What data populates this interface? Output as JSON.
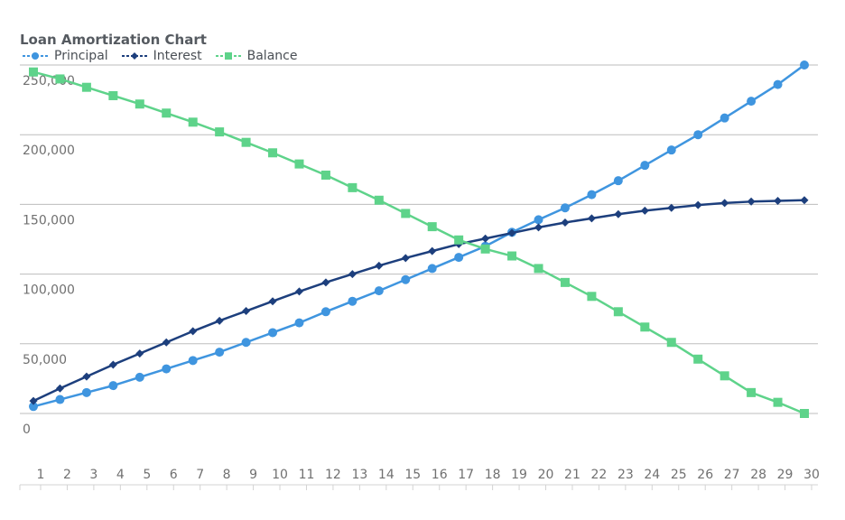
{
  "chart_data": {
    "type": "line",
    "title": "Loan Amortization Chart",
    "xlabel": "",
    "ylabel": "",
    "x": [
      1,
      2,
      3,
      4,
      5,
      6,
      7,
      8,
      9,
      10,
      11,
      12,
      13,
      14,
      15,
      16,
      17,
      18,
      19,
      20,
      21,
      22,
      23,
      24,
      25,
      26,
      27,
      28,
      29,
      30
    ],
    "xlim": [
      1,
      30
    ],
    "ylim": [
      0,
      250000
    ],
    "yticks": [
      0,
      50000,
      100000,
      150000,
      200000,
      250000
    ],
    "ytick_labels": [
      "0",
      "50,000",
      "100,000",
      "150,000",
      "200,000",
      "250,000"
    ],
    "grid": true,
    "legend": "top-left",
    "series": [
      {
        "name": "Principal",
        "color": "#3f95df",
        "marker": "circle",
        "values": [
          5000,
          10000,
          15000,
          20000,
          26000,
          32000,
          38000,
          44000,
          51000,
          58000,
          65000,
          73000,
          80500,
          88000,
          96000,
          104000,
          112000,
          120000,
          130000,
          139000,
          147500,
          157000,
          167000,
          178000,
          189000,
          200000,
          212000,
          224000,
          236000,
          250000
        ]
      },
      {
        "name": "Interest",
        "color": "#1d3f7d",
        "marker": "diamond",
        "values": [
          9000,
          18000,
          26500,
          35000,
          43000,
          51000,
          59000,
          66500,
          73500,
          80500,
          87500,
          94000,
          100000,
          106000,
          111500,
          116500,
          121500,
          125500,
          129500,
          133500,
          137000,
          140000,
          143000,
          145500,
          147500,
          149500,
          151000,
          152000,
          152500,
          153000
        ]
      },
      {
        "name": "Balance",
        "color": "#5ed38a",
        "marker": "square",
        "values": [
          245000,
          240000,
          234000,
          228000,
          222000,
          215500,
          209000,
          202000,
          194500,
          187000,
          179000,
          171000,
          162000,
          153000,
          143500,
          134000,
          124500,
          118000,
          113000,
          104000,
          94000,
          84000,
          73000,
          62000,
          51000,
          39000,
          27000,
          15000,
          8000,
          0
        ]
      }
    ]
  }
}
